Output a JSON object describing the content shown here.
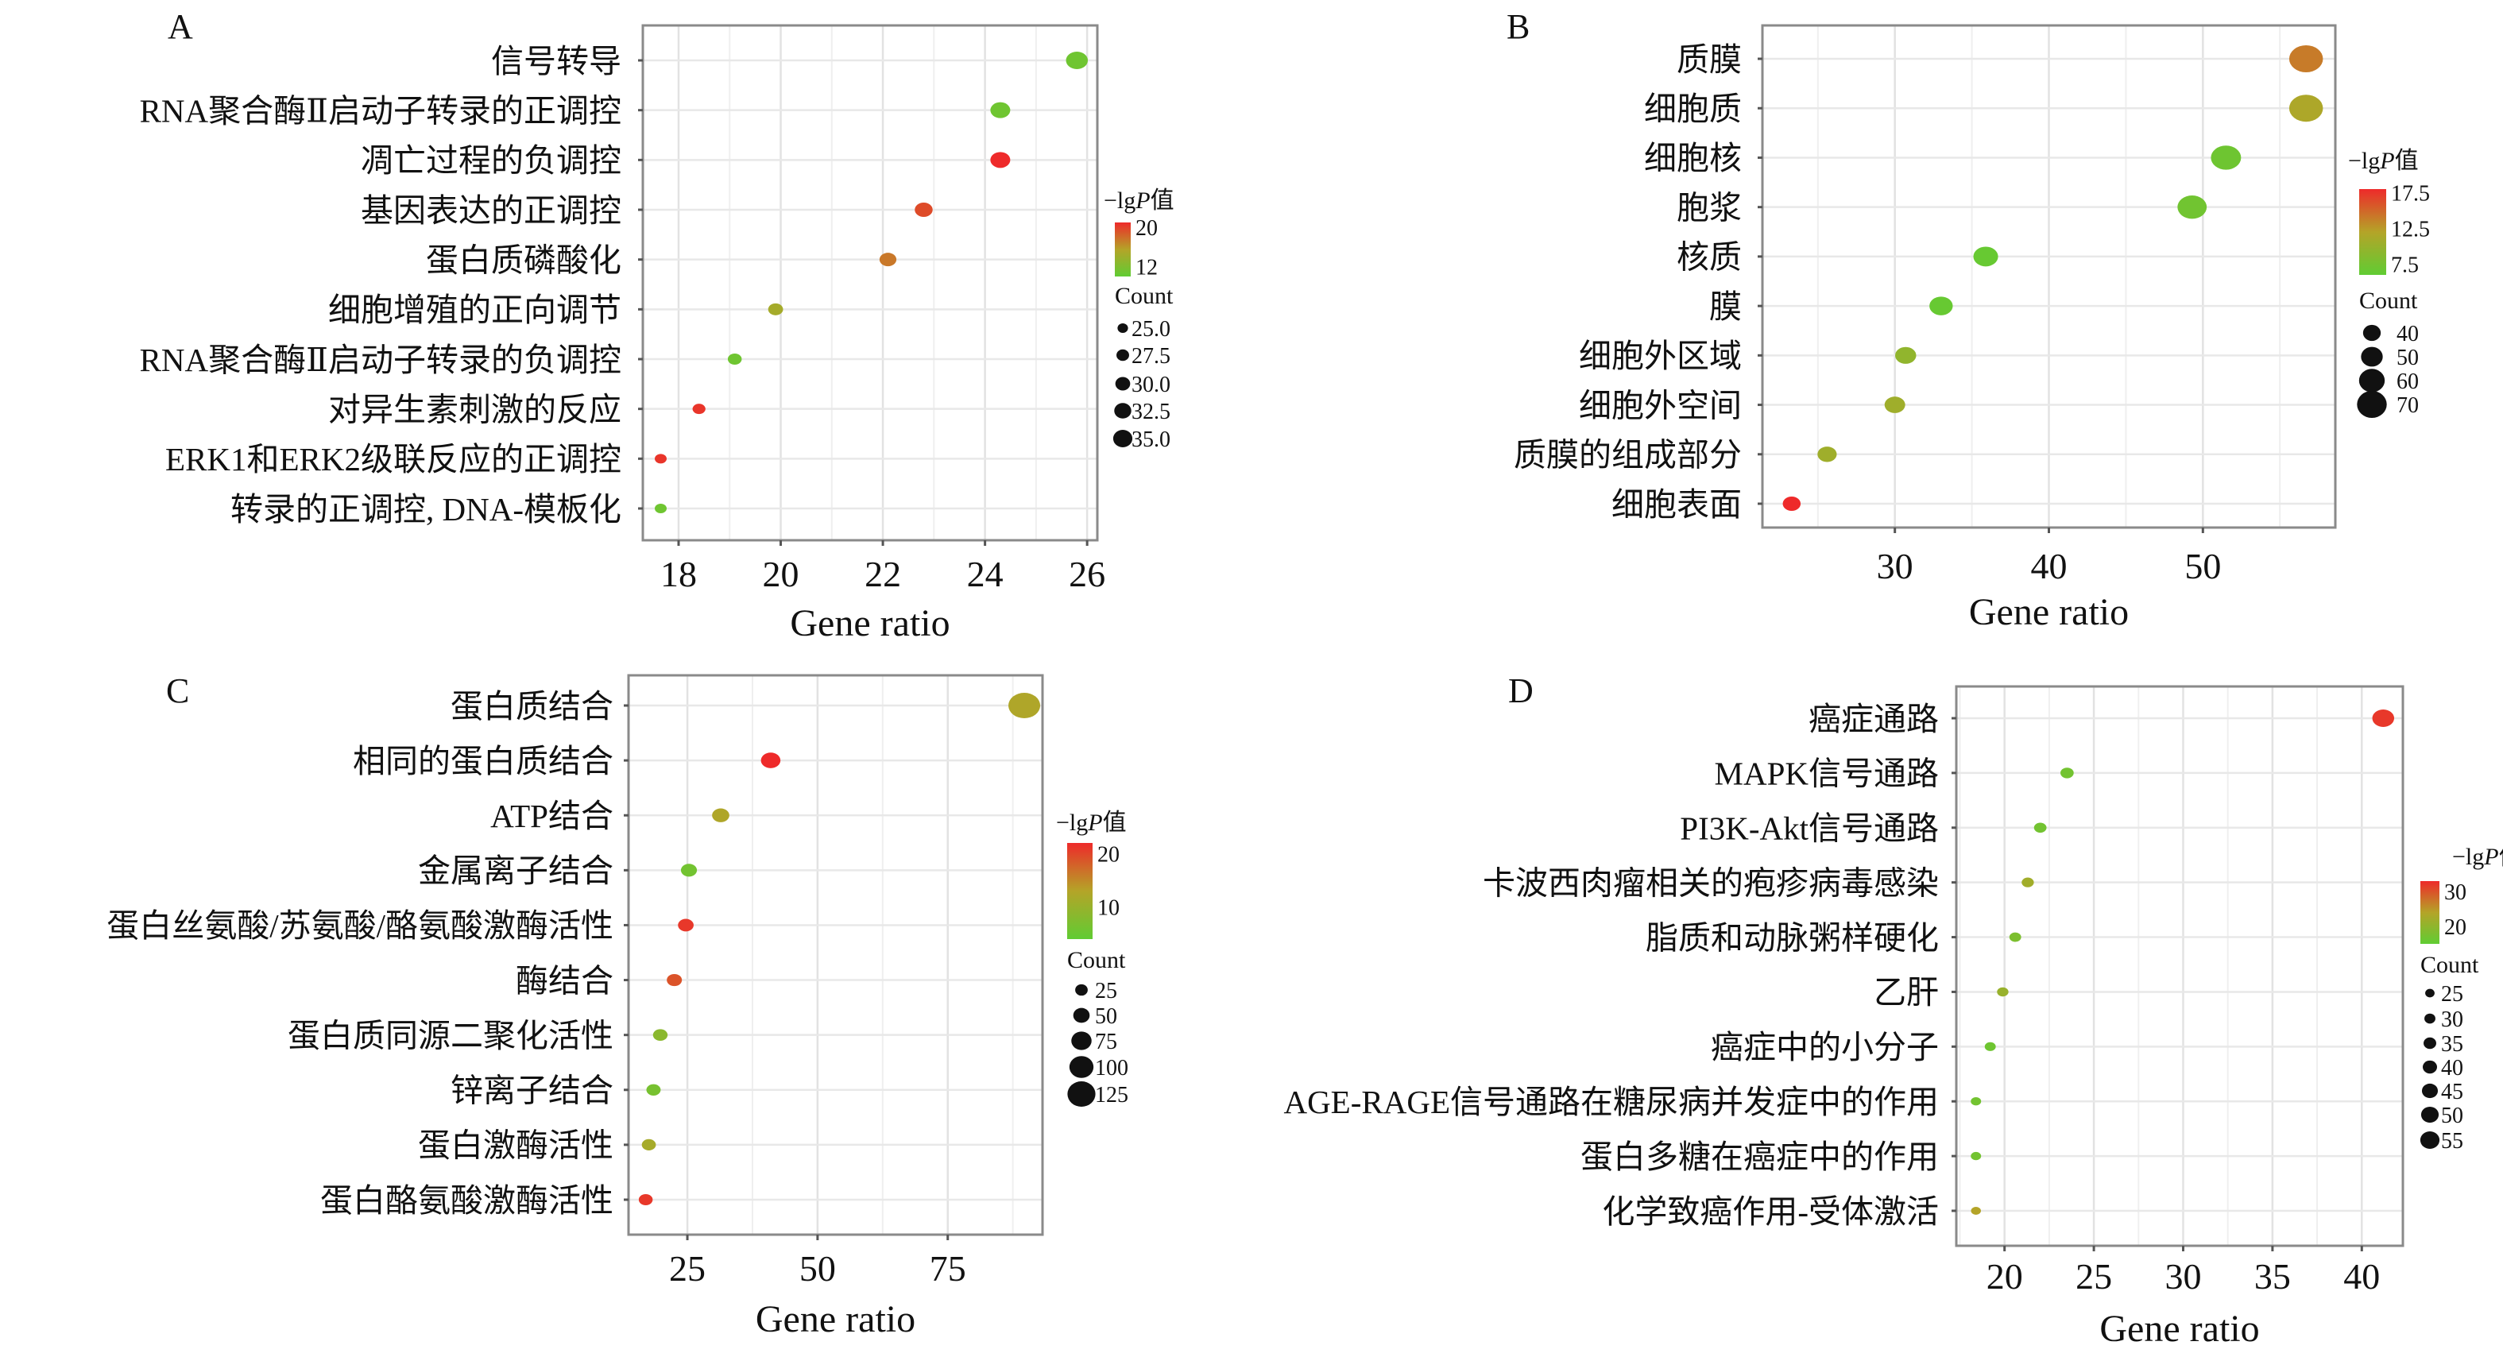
{
  "chart_data": [
    {
      "panel": "A",
      "type": "scatter",
      "categories": [
        "信号转导",
        "RNA聚合酶Ⅱ启动子转录的正调控",
        "凋亡过程的负调控",
        "基因表达的正调控",
        "蛋白质磷酸化",
        "细胞增殖的正向调节",
        "RNA聚合酶Ⅱ启动子转录的负调控",
        "对异生素刺激的反应",
        "ERK1和ERK2级联反应的正调控",
        "转录的正调控, DNA-模板化"
      ],
      "x": [
        25.8,
        24.3,
        24.3,
        22.8,
        22.1,
        19.9,
        19.1,
        18.4,
        17.65,
        17.65
      ],
      "neg_log_p": [
        11,
        11,
        21,
        19.5,
        17.5,
        14.5,
        11,
        20.5,
        20.5,
        11
      ],
      "count": [
        35,
        33,
        33,
        31,
        30,
        28,
        27,
        26,
        25,
        25
      ],
      "xlabel": "Gene ratio",
      "xticks": [
        18,
        20,
        22,
        24,
        26
      ],
      "xlim": [
        17.3,
        26.2
      ],
      "grid": true,
      "color_legend": {
        "title": "−lgP值",
        "ticks": [
          20,
          12
        ],
        "range": [
          10,
          21
        ],
        "colors": {
          "low": "#60cc33",
          "mid": "#b4a428",
          "high": "#ee2a2a"
        }
      },
      "size_legend": {
        "title": "Count",
        "values": [
          "25.0",
          "27.5",
          "30.0",
          "32.5",
          "35.0"
        ],
        "range": [
          25,
          35
        ]
      },
      "legend_position": "right"
    },
    {
      "panel": "B",
      "type": "scatter",
      "categories": [
        "质膜",
        "细胞质",
        "细胞核",
        "胞浆",
        "核质",
        "膜",
        "细胞外区域",
        "细胞外空间",
        "质膜的组成部分",
        "细胞表面"
      ],
      "x": [
        56.7,
        56.7,
        51.5,
        49.3,
        35.9,
        33.0,
        30.7,
        30.0,
        25.6,
        23.3
      ],
      "neg_log_p": [
        14,
        11.5,
        7,
        7.2,
        6.5,
        6.5,
        9.5,
        10.5,
        10.5,
        18
      ],
      "count": [
        70,
        70,
        62,
        60,
        50,
        47,
        42,
        41,
        38,
        35
      ],
      "xlabel": "Gene ratio",
      "xticks": [
        30,
        40,
        50
      ],
      "xlim": [
        21.4,
        58.6
      ],
      "grid": true,
      "color_legend": {
        "title": "−lgP值",
        "ticks": [
          17.5,
          12.5,
          7.5
        ],
        "range": [
          6,
          18
        ],
        "colors": {
          "low": "#60cc33",
          "mid": "#b4a428",
          "high": "#ee2a2a"
        }
      },
      "size_legend": {
        "title": "Count",
        "values": [
          "40",
          "50",
          "60",
          "70"
        ],
        "range": [
          35,
          70
        ]
      },
      "legend_position": "right"
    },
    {
      "panel": "C",
      "type": "scatter",
      "categories": [
        "蛋白质结合",
        "相同的蛋白质结合",
        "ATP结合",
        "金属离子结合",
        "蛋白丝氨酸/苏氨酸/酪氨酸激酶活性",
        "酶结合",
        "蛋白质同源二聚化活性",
        "锌离子结合",
        "蛋白激酶活性",
        "蛋白酪氨酸激酶活性"
      ],
      "x": [
        89.7,
        41.0,
        31.4,
        25.3,
        24.7,
        22.5,
        19.8,
        18.5,
        17.6,
        17.0
      ],
      "neg_log_p": [
        12.5,
        22,
        12.5,
        6,
        21,
        19,
        8.5,
        6.5,
        11.5,
        21
      ],
      "count": [
        125,
        55,
        42,
        35,
        33,
        30,
        27,
        25,
        24,
        23
      ],
      "xlabel": "Gene ratio",
      "xticks": [
        25,
        50,
        75
      ],
      "xlim": [
        13.7,
        93.2
      ],
      "grid": true,
      "color_legend": {
        "title": "−lgP值",
        "ticks": [
          20,
          10
        ],
        "range": [
          4,
          22
        ],
        "colors": {
          "low": "#60cc33",
          "mid": "#b4a428",
          "high": "#ee2a2a"
        }
      },
      "size_legend": {
        "title": "Count",
        "values": [
          "25",
          "50",
          "75",
          "100",
          "125"
        ],
        "range": [
          23,
          125
        ]
      },
      "legend_position": "right"
    },
    {
      "panel": "D",
      "type": "scatter",
      "categories": [
        "癌症通路",
        "MAPK信号通路",
        "PI3K-Akt信号通路",
        "卡波西肉瘤相关的疱疹病毒感染",
        "脂质和动脉粥样硬化",
        "乙肝",
        "癌症中的小分子",
        "AGE-RAGE信号通路在糖尿病并发症中的作用",
        "蛋白多糖在癌症中的作用",
        "化学致癌作用-受体激活"
      ],
      "x": [
        41.2,
        23.5,
        22.0,
        21.3,
        20.6,
        19.9,
        19.2,
        18.4,
        18.4,
        18.4
      ],
      "neg_log_p": [
        32,
        17,
        17,
        22,
        18,
        21,
        16.5,
        17,
        17,
        24
      ],
      "count": [
        55,
        32,
        30,
        29,
        28,
        27,
        26,
        24,
        24,
        23
      ],
      "xlabel": "Gene ratio",
      "xticks": [
        20,
        25,
        30,
        35,
        40
      ],
      "xlim": [
        17.3,
        42.3
      ],
      "grid": true,
      "color_legend": {
        "title": "−lgP值",
        "ticks": [
          30,
          20
        ],
        "range": [
          15,
          33
        ],
        "colors": {
          "low": "#60cc33",
          "mid": "#b4a428",
          "high": "#ee2a2a"
        }
      },
      "size_legend": {
        "title": "Count",
        "values": [
          "25",
          "30",
          "35",
          "40",
          "45",
          "50",
          "55"
        ],
        "range": [
          23,
          55
        ]
      },
      "legend_position": "right"
    }
  ]
}
